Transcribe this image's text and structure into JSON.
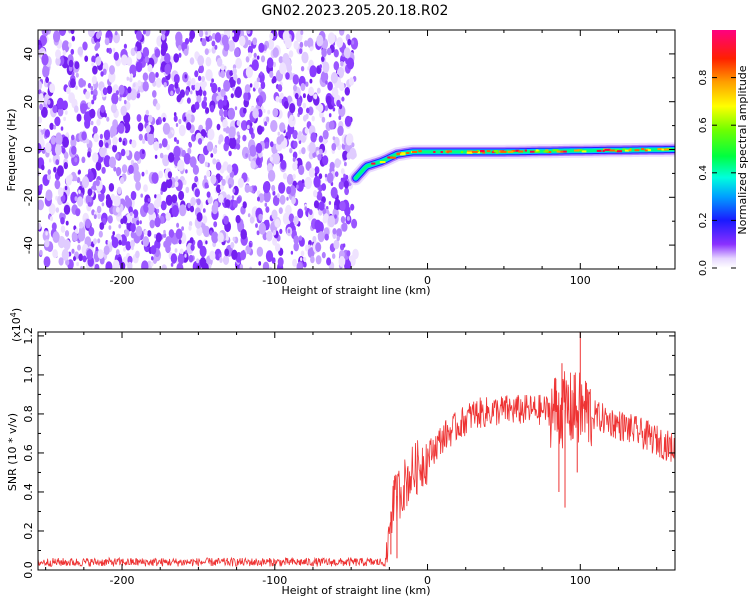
{
  "title": "GN02.2023.205.20.18.R02",
  "chart_data": [
    {
      "type": "heatmap",
      "xlabel": "Height of straight line (km)",
      "ylabel": "Frequency (Hz)",
      "xlim": [
        -255,
        162
      ],
      "ylim": [
        -50,
        50
      ],
      "xticks": [
        -200,
        -100,
        0,
        100
      ],
      "yticks": [
        -40,
        -20,
        0,
        20,
        40
      ],
      "noise_region": [
        -255,
        -47
      ],
      "signal_track": [
        {
          "x": -47,
          "y": -12
        },
        {
          "x": -40,
          "y": -7
        },
        {
          "x": -30,
          "y": -5
        },
        {
          "x": -20,
          "y": -2
        },
        {
          "x": -10,
          "y": -1
        },
        {
          "x": 0,
          "y": -1
        },
        {
          "x": 50,
          "y": -1
        },
        {
          "x": 100,
          "y": -0.5
        },
        {
          "x": 162,
          "y": 0
        }
      ],
      "colorbar": {
        "label": "Normalized spectral amplitude",
        "range": [
          0,
          1
        ],
        "ticks": [
          "0.0",
          "0.2",
          "0.4",
          "0.6",
          "0.8"
        ],
        "tick_values": [
          0,
          0.2,
          0.4,
          0.6,
          0.8
        ]
      }
    },
    {
      "type": "line",
      "xlabel": "Height of straight line (km)",
      "ylabel": "SNR (10 * v/v)",
      "scale_note": "(x10",
      "scale_exp": "4",
      "scale_close": ")",
      "xlim": [
        -255,
        162
      ],
      "ylim": [
        0,
        1.22
      ],
      "xticks": [
        -200,
        -100,
        0,
        100
      ],
      "yticks": [
        "0.0",
        "0.2",
        "0.4",
        "0.6",
        "0.8",
        "1.0",
        "1.2"
      ],
      "ytick_values": [
        0,
        0.2,
        0.4,
        0.6,
        0.8,
        1.0,
        1.2
      ],
      "series": [
        {
          "color": "#ee3333",
          "anchors": [
            {
              "x": -255,
              "y": 0.04
            },
            {
              "x": -27,
              "y": 0.04
            },
            {
              "x": -24,
              "y": 0.3
            },
            {
              "x": -20,
              "y": 0.38
            },
            {
              "x": -10,
              "y": 0.5
            },
            {
              "x": 0,
              "y": 0.58
            },
            {
              "x": 10,
              "y": 0.68
            },
            {
              "x": 20,
              "y": 0.74
            },
            {
              "x": 30,
              "y": 0.8
            },
            {
              "x": 50,
              "y": 0.82
            },
            {
              "x": 70,
              "y": 0.82
            },
            {
              "x": 90,
              "y": 0.82
            },
            {
              "x": 100,
              "y": 0.82
            },
            {
              "x": 120,
              "y": 0.76
            },
            {
              "x": 140,
              "y": 0.7
            },
            {
              "x": 162,
              "y": 0.62
            }
          ],
          "spikes": [
            {
              "x": 84,
              "y": 0.98
            },
            {
              "x": 86,
              "y": 0.4
            },
            {
              "x": 88,
              "y": 1.06
            },
            {
              "x": 90,
              "y": 0.32
            },
            {
              "x": 92,
              "y": 0.95
            },
            {
              "x": 96,
              "y": 1.0
            },
            {
              "x": 100,
              "y": 1.22
            },
            {
              "x": 98,
              "y": 0.5
            },
            {
              "x": 104,
              "y": 0.96
            },
            {
              "x": -24,
              "y": 0.08
            },
            {
              "x": -22,
              "y": 0.46
            },
            {
              "x": -20,
              "y": 0.06
            }
          ]
        }
      ]
    }
  ]
}
